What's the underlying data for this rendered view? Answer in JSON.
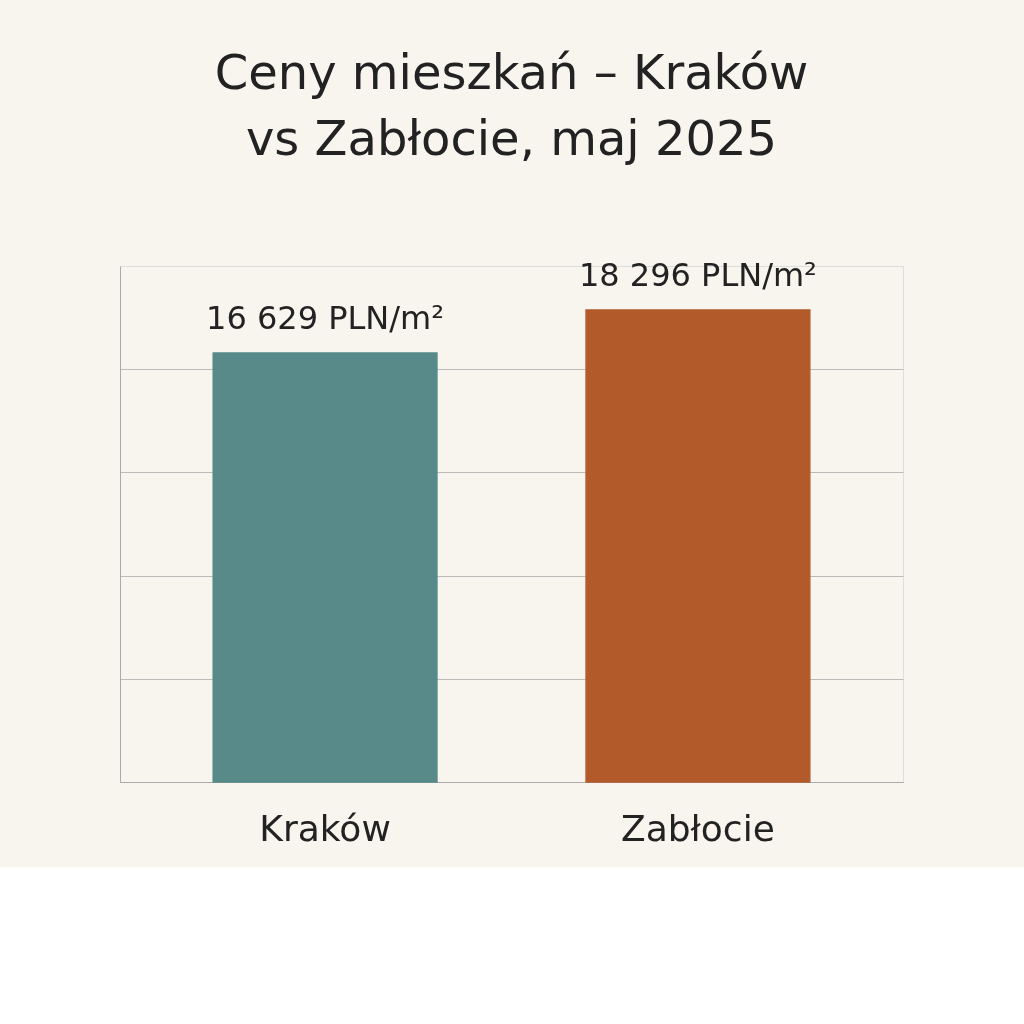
{
  "chart_data": {
    "type": "bar",
    "title": "Ceny mieszkań – Kraków vs Zabłocie, maj 2025",
    "categories": [
      "Kraków",
      "Zabłocie"
    ],
    "values": [
      16629,
      18296
    ],
    "colors": [
      "#578a89",
      "#b35a2a"
    ],
    "value_labels": [
      "16 629 PLN/m²",
      "18 296 PLN/m²"
    ],
    "ylim": [
      0,
      20000
    ],
    "yticks": [
      {
        "value": 0,
        "label": null
      },
      {
        "value": 4000,
        "label": null
      },
      {
        "value": 8000,
        "label": null
      },
      {
        "value": 12000,
        "label": null
      },
      {
        "value": 16000,
        "label": null
      }
    ],
    "grid": "y",
    "tick_labels": "x"
  }
}
